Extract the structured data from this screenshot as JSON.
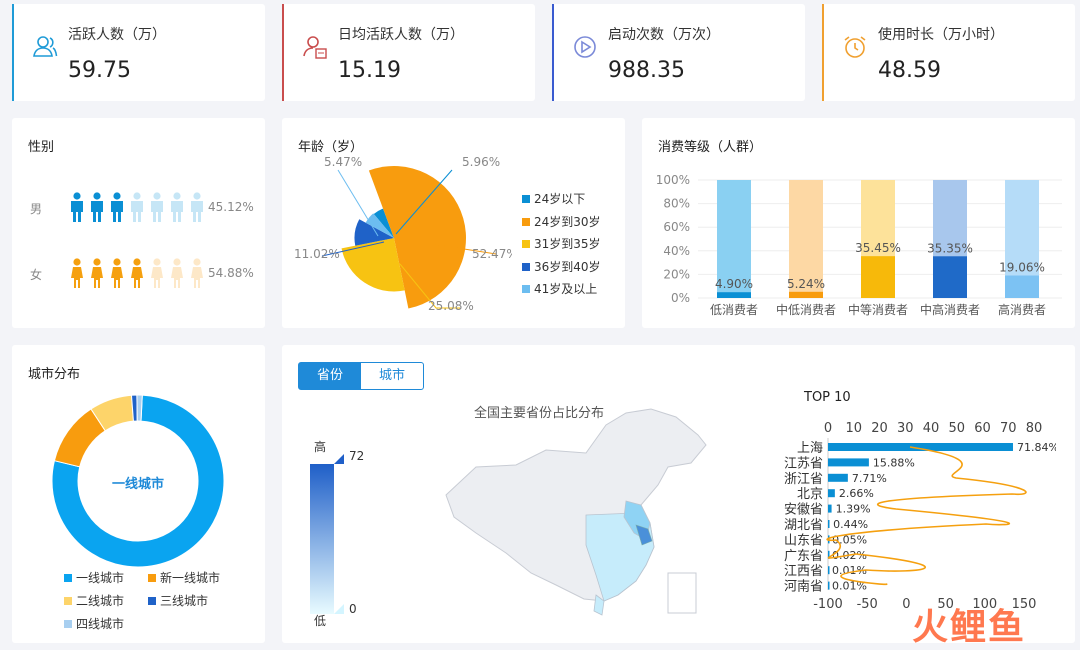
{
  "kpis": [
    {
      "label": "活跃人数（万）",
      "value": "59.75",
      "color": "#1f9bd7",
      "icon": "users-icon"
    },
    {
      "label": "日均活跃人数（万）",
      "value": "15.19",
      "color": "#c94d4d",
      "icon": "user-calendar-icon"
    },
    {
      "label": "启动次数（万次）",
      "value": "988.35",
      "color": "#3a5bd0",
      "icon": "play-icon"
    },
    {
      "label": "使用时长（万小时）",
      "value": "48.59",
      "color": "#f0a030",
      "icon": "alarm-clock-icon"
    }
  ],
  "gender": {
    "title": "性别",
    "rows": [
      {
        "label": "男",
        "pct": "45.12%"
      },
      {
        "label": "女",
        "pct": "54.88%"
      }
    ]
  },
  "age": {
    "title": "年龄（岁）",
    "legend": [
      "24岁以下",
      "24岁到30岁",
      "31岁到35岁",
      "36岁到40岁",
      "41岁及以上"
    ],
    "labels": [
      "5.47%",
      "5.96%",
      "11.02%",
      "52.47%",
      "25.08%"
    ]
  },
  "consume": {
    "title": "消费等级（人群）"
  },
  "city": {
    "title": "城市分布",
    "center": "一线城市",
    "legend": [
      "一线城市",
      "新一线城市",
      "二线城市",
      "三线城市",
      "四线城市"
    ]
  },
  "map": {
    "tab_province": "省份",
    "tab_city": "城市",
    "title": "全国主要省份占比分布",
    "scale_high": "高",
    "scale_low": "低",
    "scale_max": "72",
    "scale_min": "0"
  },
  "top10": {
    "title": "TOP 10"
  },
  "watermark": "火鲤鱼",
  "chart_data": [
    {
      "type": "bar",
      "title": "消费等级（人群）",
      "categories": [
        "低消费者",
        "中低消费者",
        "中等消费者",
        "中高消费者",
        "高消费者"
      ],
      "series": [
        {
          "values": [
            4.9,
            5.24,
            35.45,
            35.35,
            19.06
          ]
        }
      ],
      "data_labels": [
        "4.90%",
        "5.24%",
        "35.45%",
        "35.35%",
        "19.06%"
      ],
      "yticks": [
        "0%",
        "20%",
        "40%",
        "60%",
        "80%",
        "100%"
      ],
      "ylim": [
        0,
        100
      ]
    },
    {
      "type": "pie",
      "title": "年龄（岁）",
      "categories": [
        "24岁以下",
        "24岁到30岁",
        "31岁到35岁",
        "36岁到40岁",
        "41岁及以上"
      ],
      "values": [
        5.47,
        52.47,
        25.08,
        11.02,
        5.96
      ]
    },
    {
      "type": "pie",
      "title": "城市分布",
      "categories": [
        "一线城市",
        "新一线城市",
        "二线城市",
        "三线城市",
        "四线城市"
      ],
      "values": [
        78,
        12,
        8,
        1,
        1
      ]
    },
    {
      "type": "bar",
      "title": "TOP 10",
      "categories": [
        "上海",
        "江苏省",
        "浙江省",
        "北京",
        "安徽省",
        "湖北省",
        "山东省",
        "广东省",
        "江西省",
        "河南省"
      ],
      "values": [
        71.84,
        15.88,
        7.71,
        2.66,
        1.39,
        0.44,
        0.05,
        0.02,
        0.01,
        0.01
      ],
      "data_labels": [
        "71.84%",
        "15.88%",
        "7.71%",
        "2.66%",
        "1.39%",
        "0.44%",
        "0.05%",
        "0.02%",
        "0.01%",
        "0.01%"
      ],
      "top_ticks": [
        "0",
        "10",
        "20",
        "30",
        "40",
        "50",
        "60",
        "70",
        "80"
      ],
      "bottom_ticks": [
        "-100",
        "-50",
        "0",
        "50",
        "100",
        "150"
      ]
    }
  ]
}
